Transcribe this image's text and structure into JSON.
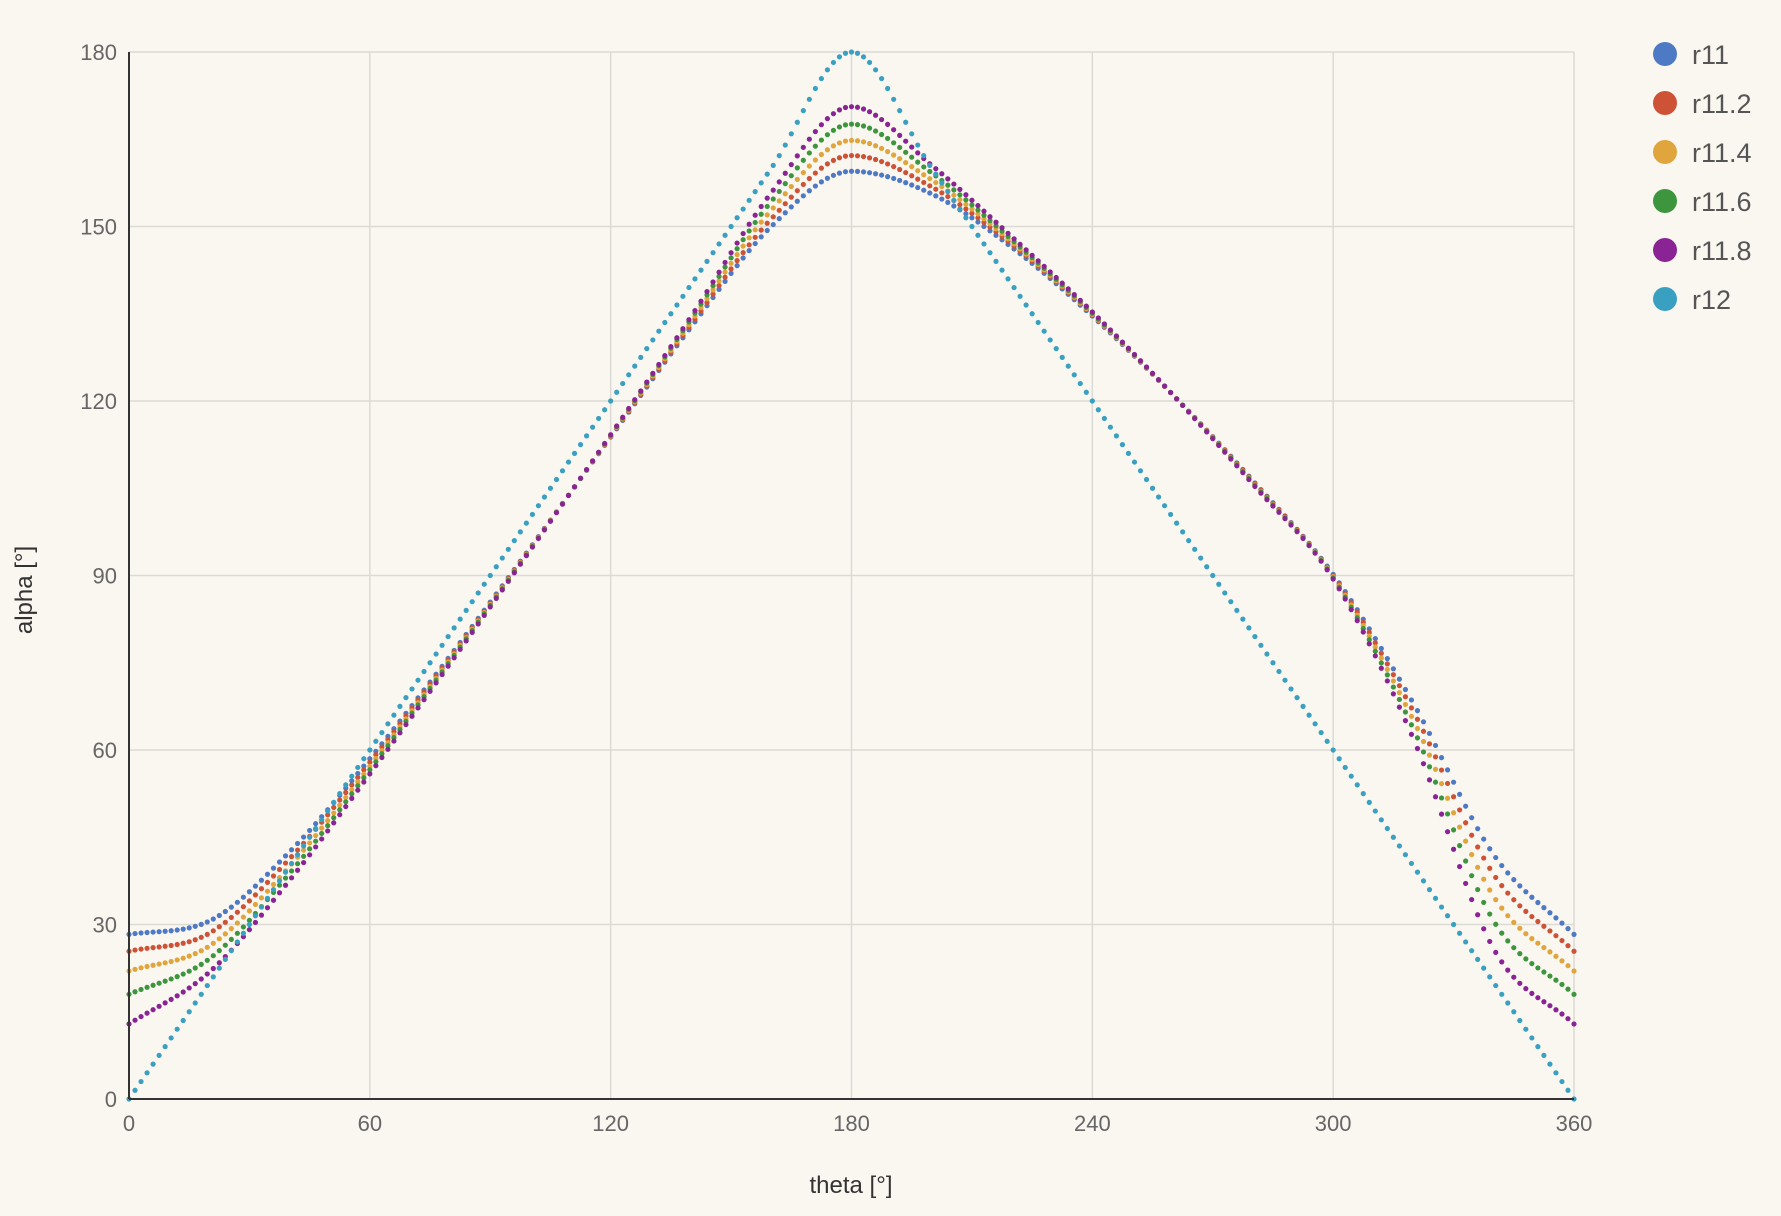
{
  "chart_data": {
    "type": "scatter",
    "title": "",
    "xlabel": "theta [°]",
    "ylabel": "alpha [°]",
    "xlim": [
      0,
      360
    ],
    "ylim": [
      0,
      180
    ],
    "x_ticks": [
      "0",
      "60",
      "120",
      "180",
      "240",
      "300",
      "360"
    ],
    "y_ticks": [
      "0",
      "30",
      "60",
      "90",
      "120",
      "150",
      "180"
    ],
    "grid": true,
    "legend_position": "right",
    "x": [
      0,
      20,
      40,
      60,
      80,
      100,
      120,
      140,
      160,
      180,
      200,
      220,
      240,
      260,
      280,
      300,
      320,
      340,
      360
    ],
    "series": [
      {
        "name": "r11",
        "color": "#4e79c4",
        "values": [
          28.3,
          30.6,
          42.5,
          58.5,
          76.2,
          94.8,
          113.8,
          132.7,
          150.0,
          159.5,
          155.6,
          146.4,
          134.6,
          121.1,
          106.3,
          90.2,
          68.0,
          42.0,
          28.3
        ]
      },
      {
        "name": "r11.2",
        "color": "#cd5236",
        "values": [
          25.4,
          28.5,
          41.3,
          57.9,
          75.9,
          94.7,
          113.9,
          133.1,
          151.3,
          162.2,
          156.8,
          146.9,
          134.8,
          121.1,
          106.2,
          90.0,
          66.6,
          38.6,
          25.4
        ]
      },
      {
        "name": "r11.4",
        "color": "#e0a53c",
        "values": [
          22.0,
          26.3,
          40.0,
          57.2,
          75.6,
          94.6,
          114.0,
          133.6,
          152.8,
          164.8,
          158.0,
          147.3,
          134.9,
          121.1,
          106.0,
          89.8,
          65.1,
          34.8,
          22.0
        ]
      },
      {
        "name": "r11.6",
        "color": "#3d953e",
        "values": [
          18.0,
          24.1,
          38.8,
          56.6,
          75.3,
          94.5,
          114.1,
          134.1,
          154.3,
          167.6,
          159.2,
          147.7,
          135.1,
          121.1,
          105.9,
          89.6,
          63.6,
          30.6,
          18.0
        ]
      },
      {
        "name": "r11.8",
        "color": "#8a2393",
        "values": [
          12.9,
          21.8,
          37.6,
          55.9,
          74.9,
          94.4,
          114.2,
          134.5,
          155.8,
          170.6,
          160.5,
          148.2,
          135.3,
          121.1,
          105.7,
          89.4,
          61.9,
          25.8,
          12.9
        ]
      },
      {
        "name": "r12",
        "color": "#3aa0c2",
        "values": [
          0,
          20,
          40,
          60,
          80,
          100,
          120,
          140,
          160,
          180,
          160,
          140,
          120,
          100,
          80,
          60,
          40,
          20,
          0
        ]
      }
    ]
  }
}
